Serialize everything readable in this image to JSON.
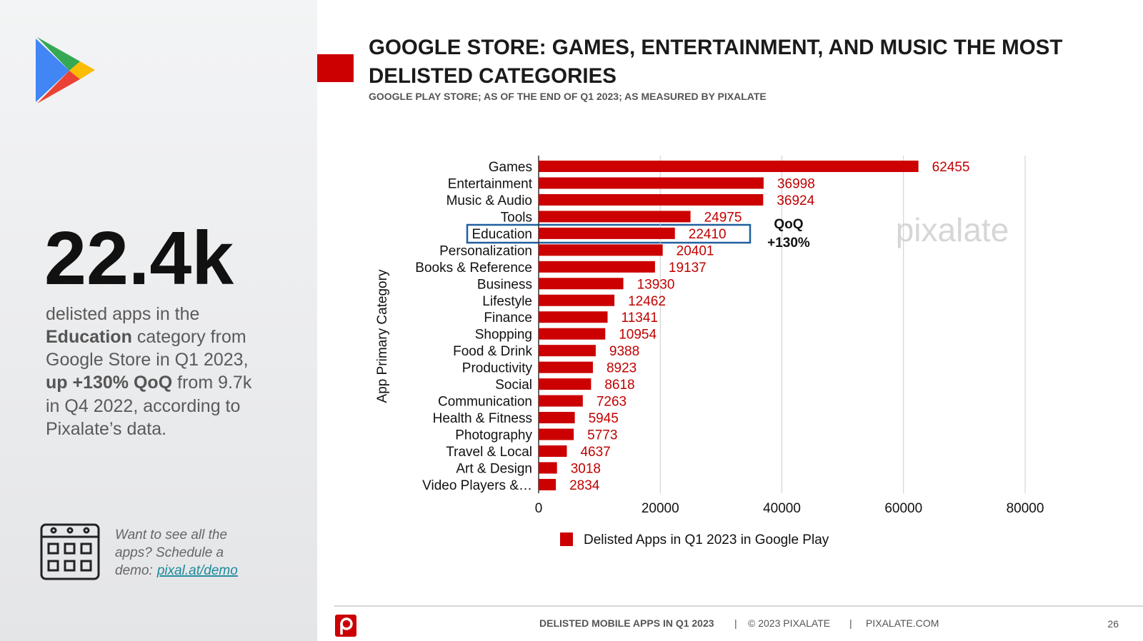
{
  "big_number": "22.4k",
  "description": [
    "delisted apps in the",
    "Education",
    "category from",
    "Google Store in Q1 2023,",
    "up +130% QoQ",
    "from 9.7k",
    "in Q4 2022, according to",
    "Pixalate’s data."
  ],
  "cta": [
    "Want to see all the",
    "apps? Schedule a",
    "demo:"
  ],
  "cta_link": "pixal.at/demo",
  "watermark": "pixalate",
  "footer": {
    "report": "DELISTED MOBILE APPS IN Q1 2023",
    "separator": "|",
    "copyright": "© 2023 PIXALATE",
    "site": "PIXALATE.COM",
    "page": "26"
  },
  "chart_data": {
    "type": "barh",
    "title": "GOOGLE STORE: GAMES, ENTERTAINMENT, AND MUSIC THE MOST DELISTED CATEGORIES",
    "subtitle": "GOOGLE PLAY STORE;  AS OF THE END OF Q1 2023; AS MEASURED BY PIXALATE",
    "y_label": "App Primary Category",
    "categories": [
      "Games",
      "Entertainment",
      "Music & Audio",
      "Tools",
      "Education",
      "Personalization",
      "Books & Reference",
      "Business",
      "Lifestyle",
      "Finance",
      "Shopping",
      "Food & Drink",
      "Productivity",
      "Social",
      "Communication",
      "Health & Fitness",
      "Photography",
      "Travel & Local",
      "Art & Design",
      "Video Players &…"
    ],
    "series": [
      {
        "name": "Delisted Apps in Q1 2023 in Google Play",
        "color": "#cc0000",
        "values": [
          62455,
          36998,
          36924,
          24975,
          22410,
          20401,
          19137,
          13930,
          12462,
          11341,
          10954,
          9388,
          8923,
          8618,
          7263,
          5945,
          5773,
          4637,
          3018,
          2834
        ]
      }
    ],
    "xlim": [
      0,
      80000
    ],
    "xticks": [
      0,
      20000,
      40000,
      60000,
      80000
    ],
    "grid": true,
    "annotations": [
      "QoQ",
      "+130%"
    ]
  }
}
